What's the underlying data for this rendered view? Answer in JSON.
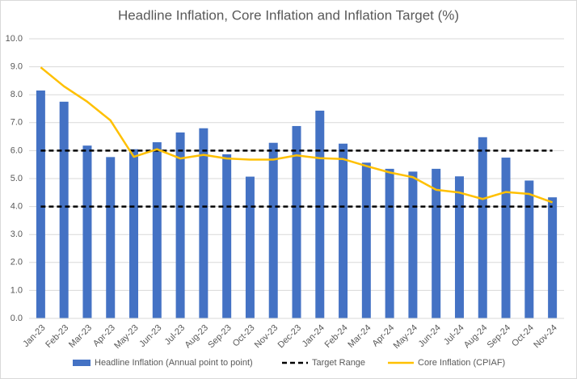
{
  "chart_data": {
    "type": "bar",
    "title": "Headline Inflation, Core Inflation and Inflation Target (%)",
    "categories": [
      "Jan-23",
      "Feb-23",
      "Mar-23",
      "Apr-23",
      "May-23",
      "Jun-23",
      "Jul-23",
      "Aug-23",
      "Sep-23",
      "Oct-23",
      "Nov-23",
      "Dec-23",
      "Jan-24",
      "Feb-24",
      "Mar-24",
      "Apr-24",
      "May-24",
      "Jun-24",
      "Jul-24",
      "Aug-24",
      "Sep-24",
      "Oct-24",
      "Nov-24"
    ],
    "series": [
      {
        "name": "Headline Inflation (Annual point to point)",
        "type": "bar",
        "color": "#4472c4",
        "values": [
          8.15,
          7.75,
          6.18,
          5.77,
          6.05,
          6.3,
          6.65,
          6.8,
          5.87,
          5.07,
          6.28,
          6.88,
          7.43,
          6.25,
          5.57,
          5.35,
          5.25,
          5.35,
          5.08,
          6.48,
          5.75,
          4.93,
          4.33
        ]
      },
      {
        "name": "Core Inflation (CPIAF)",
        "type": "line",
        "color": "#ffc000",
        "values": [
          8.98,
          8.3,
          7.75,
          7.08,
          5.78,
          6.05,
          5.72,
          5.85,
          5.72,
          5.68,
          5.68,
          5.83,
          5.73,
          5.7,
          5.45,
          5.22,
          5.05,
          4.6,
          4.5,
          4.27,
          4.52,
          4.45,
          4.15
        ]
      }
    ],
    "target_range": {
      "name": "Target Range",
      "color": "#000000",
      "values": [
        4,
        6
      ]
    },
    "ylim": [
      0,
      10
    ],
    "yticks": [
      {
        "value": 0,
        "label": "0.0"
      },
      {
        "value": 1,
        "label": "1.0"
      },
      {
        "value": 2,
        "label": "2.0"
      },
      {
        "value": 3,
        "label": "3.0"
      },
      {
        "value": 4,
        "label": "4.0"
      },
      {
        "value": 5,
        "label": "5.0"
      },
      {
        "value": 6,
        "label": "6.0"
      },
      {
        "value": 7,
        "label": "7.0"
      },
      {
        "value": 8,
        "label": "8.0"
      },
      {
        "value": 9,
        "label": "9.0"
      },
      {
        "value": 10,
        "label": "10.0"
      }
    ],
    "grid": true,
    "legend": "bottom"
  }
}
